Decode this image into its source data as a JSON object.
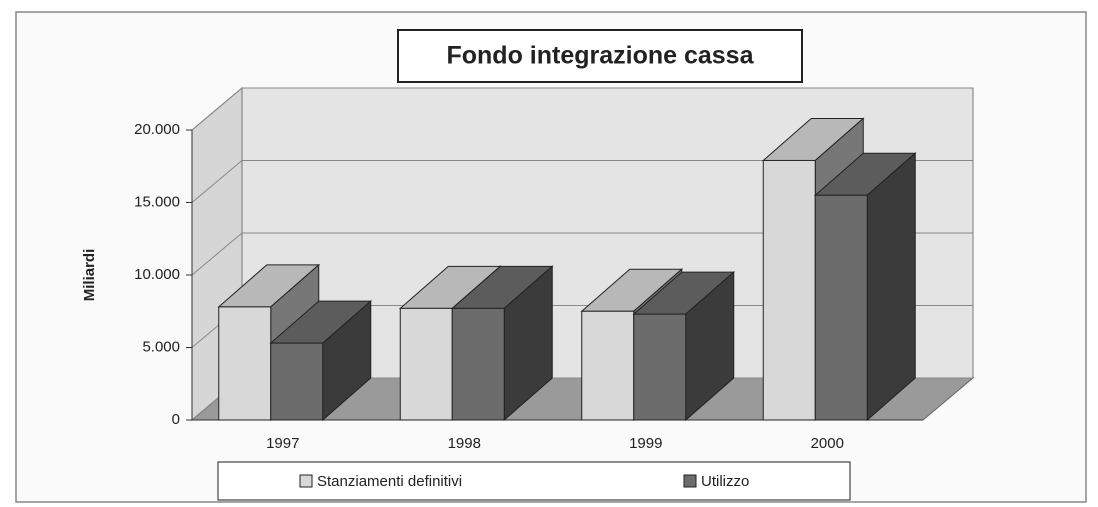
{
  "chart_data": {
    "type": "bar3d",
    "title": "Fondo integrazione cassa",
    "y_label": "Miliardi",
    "categories": [
      "1997",
      "1998",
      "1999",
      "2000"
    ],
    "series": [
      {
        "name": "Stanziamenti definitivi",
        "color": "#d8d8d8",
        "values": [
          7800,
          7700,
          7500,
          17900
        ]
      },
      {
        "name": "Utilizzo",
        "color": "#6c6c6c",
        "values": [
          5300,
          7700,
          7300,
          15500
        ]
      }
    ],
    "ylim": [
      0,
      20000
    ],
    "yticks": [
      0,
      {
        "value": 5000,
        "label": "5.000"
      },
      {
        "value": 10000,
        "label": "10.000"
      },
      {
        "value": 15000,
        "label": "15.000"
      },
      {
        "value": 20000,
        "label": "20.000"
      }
    ],
    "grid": true,
    "legend": "bottom"
  }
}
